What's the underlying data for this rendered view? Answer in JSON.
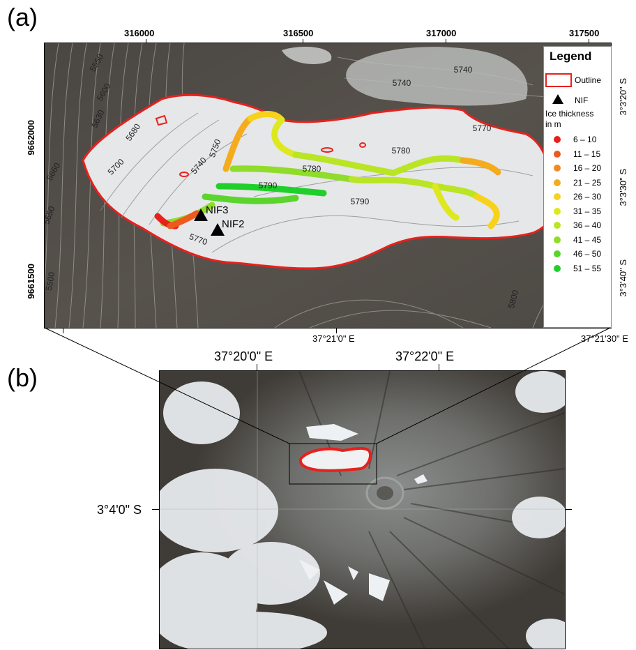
{
  "panel_a": {
    "label": "(a)",
    "top_ticks": [
      "316000",
      "316500",
      "317000",
      "317500"
    ],
    "left_ticks": [
      "9662000",
      "9661500"
    ],
    "right_ticks": [
      "3°3'20\" S",
      "3°3'30\" S",
      "3°3'40\" S"
    ],
    "bottom_ticks": [
      "37°21'0\" E",
      "37°21'30\" E"
    ],
    "contours": [
      "5550",
      "5600",
      "5630",
      "5680",
      "5660",
      "5700",
      "5740",
      "5750",
      "5650",
      "5500",
      "5740",
      "5740",
      "5780",
      "5780",
      "5790",
      "5790",
      "5770",
      "5770",
      "5800"
    ],
    "sites": [
      "NIF3",
      "NIF2"
    ],
    "legend": {
      "title": "Legend",
      "outline_label": "Outline",
      "nif_label": "NIF",
      "thickness_title_1": "Ice thickness",
      "thickness_title_2": "in m",
      "classes": [
        {
          "label": "6 – 10",
          "color": "#e8201c"
        },
        {
          "label": "11 – 15",
          "color": "#ec5a1e"
        },
        {
          "label": "16 – 20",
          "color": "#f08a20"
        },
        {
          "label": "21 – 25",
          "color": "#f4ab1e"
        },
        {
          "label": "26 – 30",
          "color": "#f7d21a"
        },
        {
          "label": "31 – 35",
          "color": "#dde81e"
        },
        {
          "label": "36 – 40",
          "color": "#b9e524"
        },
        {
          "label": "41 – 45",
          "color": "#8fdc2a"
        },
        {
          "label": "46 – 50",
          "color": "#5bd42e"
        },
        {
          "label": "51 – 55",
          "color": "#1fd02a"
        }
      ]
    }
  },
  "panel_b": {
    "label": "(b)",
    "top_ticks": [
      "37°20'0\" E",
      "37°22'0\" E"
    ],
    "left_ticks": [
      "3°4'0\" S"
    ]
  }
}
